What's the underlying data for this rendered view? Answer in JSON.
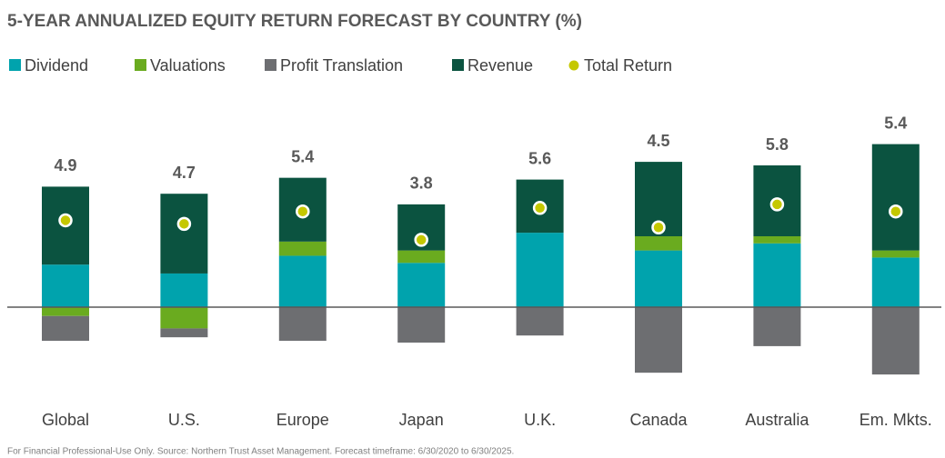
{
  "chart_data": {
    "type": "stacked_bar",
    "title": "5-YEAR ANNUALIZED EQUITY RETURN FORECAST BY COUNTRY (%)",
    "categories": [
      "Global",
      "U.S.",
      "Europe",
      "Japan",
      "U.K.",
      "Canada",
      "Australia",
      "Em. Mkts."
    ],
    "series": [
      {
        "name": "Dividend",
        "color": "#00a3ad",
        "values": [
          2.4,
          1.9,
          2.9,
          2.5,
          4.2,
          3.2,
          3.6,
          2.8
        ]
      },
      {
        "name": "Valuations",
        "color": "#6aab1f",
        "values": [
          -0.5,
          -1.2,
          0.8,
          0.7,
          0,
          0.8,
          0.4,
          0.4
        ]
      },
      {
        "name": "Profit Translation",
        "color": "#6d6e71",
        "values": [
          -1.4,
          -0.5,
          -1.9,
          -2.0,
          -1.6,
          -3.7,
          -2.2,
          -3.8
        ]
      },
      {
        "name": "Revenue",
        "color": "#0b5340",
        "values": [
          4.4,
          4.5,
          3.6,
          2.6,
          3.0,
          4.2,
          4.0,
          6.0
        ]
      }
    ],
    "total": {
      "name": "Total Return",
      "color": "#c5c800",
      "values": [
        4.9,
        4.7,
        5.4,
        3.8,
        5.6,
        4.5,
        5.8,
        5.4
      ]
    },
    "footnote": "For Financial Professional-Use Only. Source: Northern Trust Asset Management. Forecast timeframe: 6/30/2020 to 6/30/2025."
  }
}
